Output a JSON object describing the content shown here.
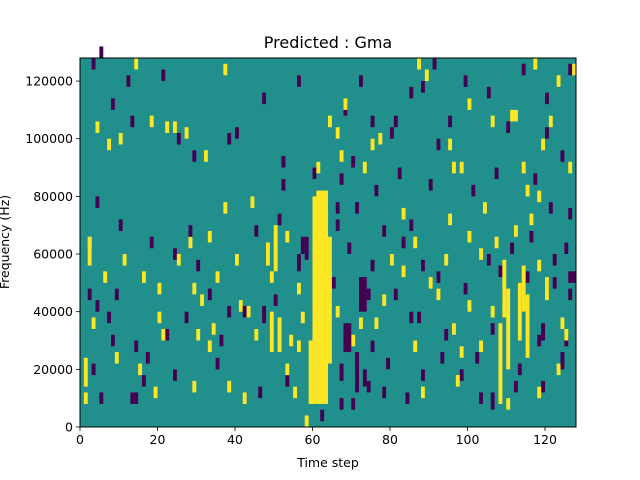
{
  "chart_data": {
    "type": "heatmap",
    "title": "Predicted : Gma",
    "xlabel": "Time step",
    "ylabel": "Frequency (Hz)",
    "xlim": [
      0,
      128
    ],
    "ylim": [
      0,
      128000
    ],
    "x_ticks": [
      0,
      20,
      40,
      60,
      80,
      100,
      120
    ],
    "y_ticks": [
      0,
      20000,
      40000,
      60000,
      80000,
      100000,
      120000
    ],
    "x_tick_labels": [
      "0",
      "20",
      "40",
      "60",
      "80",
      "100",
      "120"
    ],
    "y_tick_labels": [
      "0",
      "20000",
      "40000",
      "60000",
      "80000",
      "100000",
      "120000"
    ],
    "grid": false,
    "colormap": "viridis",
    "colors": {
      "background": "#21908d",
      "high": "#fde725",
      "low": "#440154"
    },
    "high_cells": [
      {
        "x0": 61,
        "x1": 64,
        "y0": 8000,
        "y1": 82000
      },
      {
        "x0": 59,
        "x1": 61,
        "y0": 8000,
        "y1": 30000
      },
      {
        "x0": 60,
        "x1": 62,
        "y0": 30000,
        "y1": 80000
      },
      {
        "x0": 64,
        "x1": 65,
        "y0": 22000,
        "y1": 66000
      },
      {
        "x0": 50,
        "x1": 51,
        "y0": 54000,
        "y1": 70000
      },
      {
        "x0": 49,
        "x1": 50,
        "y0": 26000,
        "y1": 40000
      },
      {
        "x0": 51,
        "x1": 52,
        "y0": 26000,
        "y1": 38000
      },
      {
        "x0": 48,
        "x1": 49,
        "y0": 56000,
        "y1": 64000
      },
      {
        "x0": 108,
        "x1": 109,
        "y0": 8000,
        "y1": 36000
      },
      {
        "x0": 110,
        "x1": 111,
        "y0": 20000,
        "y1": 48000
      },
      {
        "x0": 109,
        "x1": 110,
        "y0": 38000,
        "y1": 58000
      },
      {
        "x0": 114,
        "x1": 115,
        "y0": 40000,
        "y1": 56000
      },
      {
        "x0": 115,
        "x1": 116,
        "y0": 24000,
        "y1": 46000
      },
      {
        "x0": 113,
        "x1": 114,
        "y0": 30000,
        "y1": 50000
      },
      {
        "x0": 2,
        "x1": 3,
        "y0": 56000,
        "y1": 66000
      },
      {
        "x0": 1,
        "x1": 2,
        "y0": 14000,
        "y1": 24000
      },
      {
        "x0": 111,
        "x1": 113,
        "y0": 106000,
        "y1": 110000
      },
      {
        "x0": 118,
        "x1": 119,
        "y0": 54000,
        "y1": 58000
      },
      {
        "x0": 22,
        "x1": 23,
        "y0": 102000,
        "y1": 106000
      },
      {
        "x0": 24,
        "x1": 25,
        "y0": 102000,
        "y1": 106000
      },
      {
        "x0": 64,
        "x1": 65,
        "y0": 104000,
        "y1": 108000
      },
      {
        "x0": 77,
        "x1": 78,
        "y0": 98000,
        "y1": 102000
      },
      {
        "x0": 96,
        "x1": 97,
        "y0": 88000,
        "y1": 92000
      },
      {
        "x0": 98,
        "x1": 99,
        "y0": 88000,
        "y1": 92000
      },
      {
        "x0": 10,
        "x1": 11,
        "y0": 98000,
        "y1": 102000
      },
      {
        "x0": 106,
        "x1": 107,
        "y0": 38000,
        "y1": 42000
      },
      {
        "x0": 86,
        "x1": 87,
        "y0": 62000,
        "y1": 66000
      },
      {
        "x0": 29,
        "x1": 30,
        "y0": 12000,
        "y1": 16000
      },
      {
        "x0": 43,
        "x1": 44,
        "y0": 38000,
        "y1": 42000
      },
      {
        "x0": 55,
        "x1": 56,
        "y0": 10000,
        "y1": 14000
      },
      {
        "x0": 58,
        "x1": 59,
        "y0": 0,
        "y1": 4000
      },
      {
        "x0": 125,
        "x1": 126,
        "y0": 30000,
        "y1": 34000
      },
      {
        "x0": 120,
        "x1": 121,
        "y0": 48000,
        "y1": 52000
      },
      {
        "x0": 33,
        "x1": 34,
        "y0": 64000,
        "y1": 68000
      },
      {
        "x0": 37,
        "x1": 38,
        "y0": 74000,
        "y1": 78000
      },
      {
        "x0": 95,
        "x1": 96,
        "y0": 96000,
        "y1": 100000
      }
    ],
    "low_cells": [
      {
        "x0": 68,
        "x1": 70,
        "y0": 26000,
        "y1": 36000
      },
      {
        "x0": 71,
        "x1": 72,
        "y0": 12000,
        "y1": 26000
      },
      {
        "x0": 73,
        "x1": 74,
        "y0": 14000,
        "y1": 20000
      },
      {
        "x0": 72,
        "x1": 74,
        "y0": 40000,
        "y1": 52000
      },
      {
        "x0": 58,
        "x1": 59,
        "y0": 58000,
        "y1": 66000
      },
      {
        "x0": 57,
        "x1": 58,
        "y0": 60000,
        "y1": 66000
      },
      {
        "x0": 56,
        "x1": 57,
        "y0": 54000,
        "y1": 60000
      },
      {
        "x0": 126,
        "x1": 128,
        "y0": 50000,
        "y1": 54000
      },
      {
        "x0": 13,
        "x1": 15,
        "y0": 8000,
        "y1": 12000
      },
      {
        "x0": 75,
        "x1": 76,
        "y0": 26000,
        "y1": 30000
      },
      {
        "x0": 119,
        "x1": 120,
        "y0": 30000,
        "y1": 36000
      },
      {
        "x0": 125,
        "x1": 126,
        "y0": 28000,
        "y1": 32000
      },
      {
        "x0": 124,
        "x1": 125,
        "y0": 22000,
        "y1": 26000
      },
      {
        "x0": 122,
        "x1": 123,
        "y0": 48000,
        "y1": 52000
      },
      {
        "x0": 5,
        "x1": 6,
        "y0": 8000,
        "y1": 12000
      },
      {
        "x0": 47,
        "x1": 48,
        "y0": 36000,
        "y1": 42000
      },
      {
        "x0": 28,
        "x1": 29,
        "y0": 66000,
        "y1": 70000
      },
      {
        "x0": 52,
        "x1": 53,
        "y0": 82000,
        "y1": 86000
      },
      {
        "x0": 85,
        "x1": 86,
        "y0": 68000,
        "y1": 72000
      },
      {
        "x0": 66,
        "x1": 67,
        "y0": 74000,
        "y1": 78000
      },
      {
        "x0": 76,
        "x1": 77,
        "y0": 80000,
        "y1": 84000
      },
      {
        "x0": 81,
        "x1": 82,
        "y0": 104000,
        "y1": 108000
      },
      {
        "x0": 108,
        "x1": 109,
        "y0": 52000,
        "y1": 56000
      },
      {
        "x0": 93,
        "x1": 94,
        "y0": 22000,
        "y1": 26000
      },
      {
        "x0": 112,
        "x1": 113,
        "y0": 12000,
        "y1": 16000
      },
      {
        "x0": 17,
        "x1": 18,
        "y0": 22000,
        "y1": 26000
      },
      {
        "x0": 36,
        "x1": 37,
        "y0": 28000,
        "y1": 32000
      },
      {
        "x0": 85,
        "x1": 86,
        "y0": 36000,
        "y1": 40000
      },
      {
        "x0": 42,
        "x1": 43,
        "y0": 38000,
        "y1": 42000
      },
      {
        "x0": 9,
        "x1": 10,
        "y0": 44000,
        "y1": 48000
      },
      {
        "x0": 4,
        "x1": 5,
        "y0": 40000,
        "y1": 44000
      },
      {
        "x0": 69,
        "x1": 70,
        "y0": 60000,
        "y1": 64000
      },
      {
        "x0": 74,
        "x1": 75,
        "y0": 44000,
        "y1": 48000
      },
      {
        "x0": 67,
        "x1": 68,
        "y0": 16000,
        "y1": 22000
      },
      {
        "x0": 106,
        "x1": 107,
        "y0": 6000,
        "y1": 12000
      }
    ],
    "scatter_high": [
      [
        14,
        124000
      ],
      [
        89,
        120000
      ],
      [
        4,
        102000
      ],
      [
        100,
        110000
      ],
      [
        66,
        100000
      ],
      [
        7,
        96000
      ],
      [
        2,
        62000
      ],
      [
        6,
        50000
      ],
      [
        16,
        50000
      ],
      [
        20,
        46000
      ],
      [
        11,
        56000
      ],
      [
        29,
        46000
      ],
      [
        31,
        42000
      ],
      [
        45,
        30000
      ],
      [
        54,
        28000
      ],
      [
        53,
        18000
      ],
      [
        38,
        12000
      ],
      [
        1,
        8000
      ],
      [
        3,
        34000
      ],
      [
        9,
        22000
      ],
      [
        15,
        18000
      ],
      [
        30,
        30000
      ],
      [
        34,
        32000
      ],
      [
        20,
        36000
      ],
      [
        21,
        30000
      ],
      [
        56,
        26000
      ],
      [
        57,
        36000
      ],
      [
        66,
        38000
      ],
      [
        76,
        34000
      ],
      [
        78,
        42000
      ],
      [
        80,
        56000
      ],
      [
        83,
        52000
      ],
      [
        90,
        48000
      ],
      [
        96,
        32000
      ],
      [
        98,
        24000
      ],
      [
        103,
        26000
      ],
      [
        100,
        40000
      ],
      [
        94,
        56000
      ],
      [
        103,
        58000
      ],
      [
        107,
        62000
      ],
      [
        112,
        66000
      ],
      [
        116,
        70000
      ],
      [
        118,
        78000
      ],
      [
        126,
        88000
      ],
      [
        119,
        96000
      ],
      [
        121,
        104000
      ],
      [
        123,
        118000
      ],
      [
        127,
        122000
      ],
      [
        117,
        124000
      ],
      [
        87,
        124000
      ],
      [
        37,
        122000
      ],
      [
        68,
        110000
      ],
      [
        73,
        88000
      ],
      [
        83,
        72000
      ],
      [
        95,
        70000
      ],
      [
        100,
        64000
      ],
      [
        104,
        74000
      ],
      [
        115,
        80000
      ],
      [
        114,
        88000
      ],
      [
        106,
        104000
      ],
      [
        75,
        96000
      ],
      [
        67,
        92000
      ],
      [
        44,
        76000
      ],
      [
        32,
        92000
      ],
      [
        61,
        88000
      ],
      [
        27,
        100000
      ],
      [
        18,
        104000
      ],
      [
        41,
        40000
      ],
      [
        40,
        56000
      ],
      [
        35,
        50000
      ],
      [
        25,
        56000
      ],
      [
        28,
        62000
      ],
      [
        53,
        64000
      ],
      [
        49,
        50000
      ],
      [
        56,
        46000
      ],
      [
        62,
        42000
      ],
      [
        70,
        28000
      ],
      [
        72,
        34000
      ],
      [
        86,
        26000
      ],
      [
        92,
        44000
      ],
      [
        88,
        10000
      ],
      [
        97,
        14000
      ],
      [
        110,
        6000
      ],
      [
        118,
        10000
      ],
      [
        123,
        18000
      ],
      [
        124,
        34000
      ],
      [
        120,
        44000
      ],
      [
        33,
        26000
      ],
      [
        19,
        10000
      ],
      [
        42,
        8000
      ]
    ],
    "scatter_low": [
      [
        5,
        128000
      ],
      [
        91,
        124000
      ],
      [
        95,
        104000
      ],
      [
        110,
        102000
      ],
      [
        120,
        100000
      ],
      [
        124,
        92000
      ],
      [
        3,
        124000
      ],
      [
        12,
        118000
      ],
      [
        21,
        120000
      ],
      [
        40,
        100000
      ],
      [
        47,
        112000
      ],
      [
        56,
        118000
      ],
      [
        72,
        118000
      ],
      [
        85,
        114000
      ],
      [
        88,
        116000
      ],
      [
        99,
        118000
      ],
      [
        105,
        114000
      ],
      [
        114,
        122000
      ],
      [
        126,
        122000
      ],
      [
        120,
        112000
      ],
      [
        8,
        110000
      ],
      [
        13,
        104000
      ],
      [
        25,
        98000
      ],
      [
        29,
        92000
      ],
      [
        38,
        98000
      ],
      [
        52,
        90000
      ],
      [
        68,
        108000
      ],
      [
        75,
        104000
      ],
      [
        80,
        100000
      ],
      [
        92,
        96000
      ],
      [
        60,
        86000
      ],
      [
        67,
        84000
      ],
      [
        70,
        90000
      ],
      [
        82,
        86000
      ],
      [
        90,
        82000
      ],
      [
        101,
        80000
      ],
      [
        107,
        86000
      ],
      [
        117,
        84000
      ],
      [
        121,
        74000
      ],
      [
        126,
        72000
      ],
      [
        4,
        76000
      ],
      [
        10,
        68000
      ],
      [
        18,
        62000
      ],
      [
        24,
        58000
      ],
      [
        30,
        54000
      ],
      [
        45,
        66000
      ],
      [
        51,
        70000
      ],
      [
        66,
        68000
      ],
      [
        71,
        74000
      ],
      [
        78,
        66000
      ],
      [
        83,
        62000
      ],
      [
        88,
        54000
      ],
      [
        92,
        50000
      ],
      [
        99,
        46000
      ],
      [
        105,
        56000
      ],
      [
        111,
        60000
      ],
      [
        116,
        64000
      ],
      [
        122,
        56000
      ],
      [
        126,
        44000
      ],
      [
        2,
        44000
      ],
      [
        7,
        36000
      ],
      [
        14,
        26000
      ],
      [
        22,
        30000
      ],
      [
        27,
        36000
      ],
      [
        33,
        44000
      ],
      [
        38,
        38000
      ],
      [
        50,
        42000
      ],
      [
        65,
        48000
      ],
      [
        75,
        54000
      ],
      [
        81,
        44000
      ],
      [
        87,
        36000
      ],
      [
        94,
        30000
      ],
      [
        102,
        22000
      ],
      [
        106,
        32000
      ],
      [
        114,
        40000
      ],
      [
        118,
        28000
      ],
      [
        124,
        20000
      ],
      [
        3,
        18000
      ],
      [
        8,
        28000
      ],
      [
        16,
        14000
      ],
      [
        24,
        16000
      ],
      [
        35,
        20000
      ],
      [
        46,
        10000
      ],
      [
        53,
        14000
      ],
      [
        67,
        6000
      ],
      [
        74,
        12000
      ],
      [
        79,
        20000
      ],
      [
        84,
        8000
      ],
      [
        98,
        16000
      ],
      [
        113,
        18000
      ],
      [
        62,
        2000
      ],
      [
        70,
        6000
      ],
      [
        78,
        10000
      ],
      [
        88,
        16000
      ],
      [
        103,
        8000
      ],
      [
        119,
        12000
      ],
      [
        109,
        44000
      ],
      [
        115,
        50000
      ],
      [
        125,
        60000
      ],
      [
        63,
        56000
      ]
    ]
  }
}
